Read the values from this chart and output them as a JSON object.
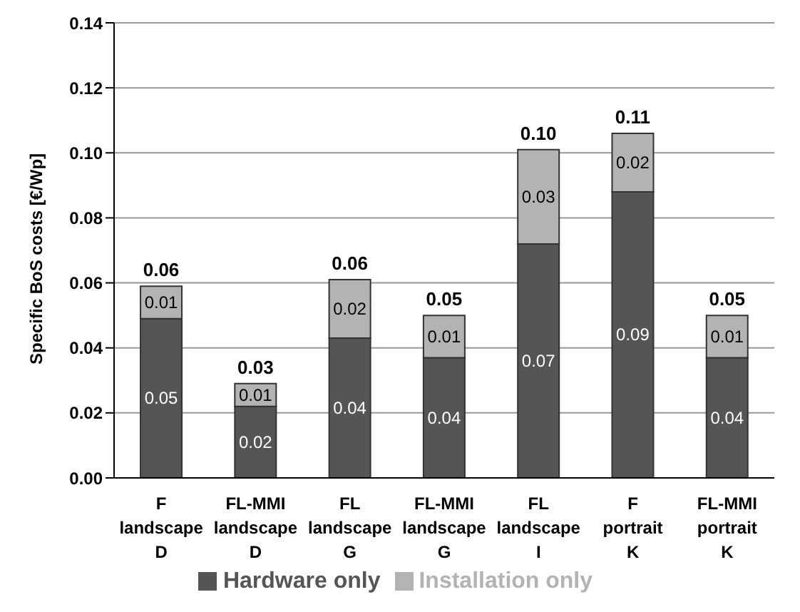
{
  "chart_data": {
    "type": "bar",
    "stacked": true,
    "ylabel": "Specific BoS costs [€/Wp]",
    "categories": [
      "F landscape D",
      "FL-MMI landscape D",
      "FL landscape G",
      "FL-MMI landscape G",
      "FL landscape I",
      "F portrait K",
      "FL-MMI portrait K"
    ],
    "series": [
      {
        "name": "Hardware only",
        "color": "#555555",
        "values": [
          0.049,
          0.022,
          0.043,
          0.037,
          0.072,
          0.088,
          0.037
        ],
        "value_labels": [
          "0.05",
          "0.02",
          "0.04",
          "0.04",
          "0.07",
          "0.09",
          "0.04"
        ]
      },
      {
        "name": "Installation only",
        "color": "#b3b3b3",
        "values": [
          0.01,
          0.007,
          0.018,
          0.013,
          0.029,
          0.018,
          0.013
        ],
        "value_labels": [
          "0.01",
          "0.01",
          "0.02",
          "0.01",
          "0.03",
          "0.02",
          "0.01"
        ]
      }
    ],
    "totals": [
      "0.06",
      "0.03",
      "0.06",
      "0.05",
      "0.10",
      "0.11",
      "0.05"
    ],
    "ylim": [
      0,
      0.14
    ],
    "yticks": [
      {
        "value": 0,
        "label": "0.00"
      },
      {
        "value": 0.02,
        "label": "0.02"
      },
      {
        "value": 0.04,
        "label": "0.04"
      },
      {
        "value": 0.06,
        "label": "0.06"
      },
      {
        "value": 0.08,
        "label": "0.08"
      },
      {
        "value": 0.1,
        "label": "0.10"
      },
      {
        "value": 0.12,
        "label": "0.12"
      },
      {
        "value": 0.14,
        "label": "0.14"
      }
    ],
    "grid": "y",
    "legend": "bottom"
  }
}
